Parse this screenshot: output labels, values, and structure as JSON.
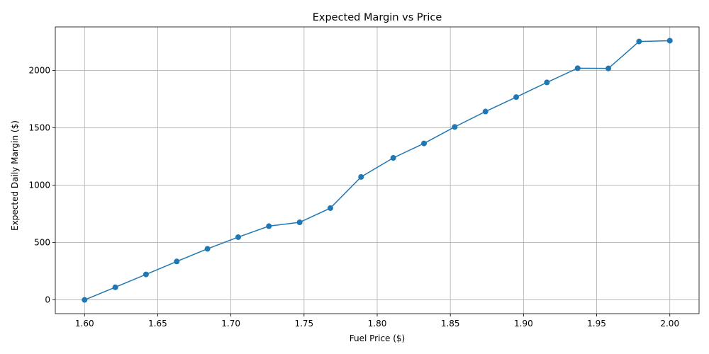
{
  "chart_data": {
    "type": "line",
    "title": "Expected Margin vs Price",
    "xlabel": "Fuel Price ($)",
    "ylabel": "Expected Daily Margin ($)",
    "xlim": [
      1.58,
      2.02
    ],
    "ylim": [
      -120,
      2380
    ],
    "xticks": [
      1.6,
      1.65,
      1.7,
      1.75,
      1.8,
      1.85,
      1.9,
      1.95,
      2.0
    ],
    "xtick_labels": [
      "1.60",
      "1.65",
      "1.70",
      "1.75",
      "1.80",
      "1.85",
      "1.90",
      "1.95",
      "2.00"
    ],
    "yticks": [
      0,
      500,
      1000,
      1500,
      2000
    ],
    "ytick_labels": [
      "0",
      "500",
      "1000",
      "1500",
      "2000"
    ],
    "grid": true,
    "marker": "circle",
    "color": "#1f77b4",
    "series": [
      {
        "x": [
          1.6,
          1.621,
          1.642,
          1.663,
          1.684,
          1.705,
          1.726,
          1.747,
          1.768,
          1.789,
          1.811,
          1.832,
          1.853,
          1.874,
          1.895,
          1.916,
          1.937,
          1.958,
          1.979,
          2.0
        ],
        "values": [
          0,
          110,
          222,
          335,
          445,
          547,
          643,
          676,
          800,
          1072,
          1238,
          1364,
          1508,
          1642,
          1768,
          1896,
          2020,
          2018,
          2253,
          2260
        ]
      }
    ]
  }
}
